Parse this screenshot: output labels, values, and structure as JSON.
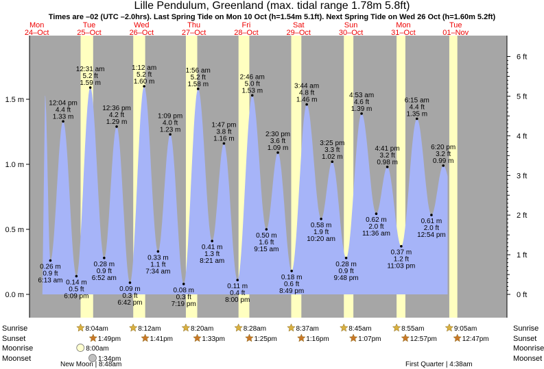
{
  "chart_data": {
    "type": "area",
    "title": "Lille Pendulum, Greenland (max. tidal range 1.78m 5.8ft)",
    "subtitle": "Times are –02 (UTC –2.0hrs). Last Spring Tide on Mon 10 Oct (h=1.54m 5.1ft). Next Spring Tide on Wed 26 Oct (h=1.60m 5.2ft)",
    "ylim_m": [
      -0.05,
      1.92
    ],
    "xlim_hours": [
      0,
      216
    ],
    "left_ticks": [
      "0.0 m",
      "0.5 m",
      "1.0 m",
      "1.5 m"
    ],
    "left_tick_values": [
      0.0,
      0.5,
      1.0,
      1.5
    ],
    "right_ticks": [
      "0 ft",
      "1 ft",
      "2 ft",
      "3 ft",
      "4 ft",
      "5 ft",
      "6 ft"
    ],
    "right_tick_values": [
      0,
      1,
      2,
      3,
      4,
      5,
      6
    ],
    "days": [
      {
        "dow": "Mon",
        "date": "24–Oct"
      },
      {
        "dow": "Tue",
        "date": "25–Oct"
      },
      {
        "dow": "Wed",
        "date": "26–Oct"
      },
      {
        "dow": "Thu",
        "date": "27–Oct"
      },
      {
        "dow": "Fri",
        "date": "28–Oct"
      },
      {
        "dow": "Sat",
        "date": "29–Oct"
      },
      {
        "dow": "Sun",
        "date": "30–Oct"
      },
      {
        "dow": "Mon",
        "date": "31–Oct"
      },
      {
        "dow": "Tue",
        "date": "01–Nov"
      }
    ],
    "tides": [
      {
        "t": 18.22,
        "h": 0.26,
        "type": "low",
        "time": "6:13 am",
        "ft": "0.9 ft",
        "m": "0.26 m"
      },
      {
        "t": 24.07,
        "h": 1.33,
        "type": "high",
        "time": "12:04 pm",
        "ft": "4.4 ft",
        "m": "1.33 m"
      },
      {
        "t": 30.15,
        "h": 0.14,
        "type": "low",
        "time": "6:09 pm",
        "ft": "0.5 ft",
        "m": "0.14 m"
      },
      {
        "t": 36.52,
        "h": 1.59,
        "type": "high",
        "time": "12:31 am",
        "ft": "5.2 ft",
        "m": "1.59 m"
      },
      {
        "t": 42.87,
        "h": 0.28,
        "type": "low",
        "time": "6:52 am",
        "ft": "0.9 ft",
        "m": "0.28 m"
      },
      {
        "t": 48.6,
        "h": 1.29,
        "type": "high",
        "time": "12:36 pm",
        "ft": "4.2 ft",
        "m": "1.29 m"
      },
      {
        "t": 54.7,
        "h": 0.09,
        "type": "low",
        "time": "6:42 pm",
        "ft": "0.3 ft",
        "m": "0.09 m"
      },
      {
        "t": 61.2,
        "h": 1.6,
        "type": "high",
        "time": "1:12 am",
        "ft": "5.2 ft",
        "m": "1.60 m"
      },
      {
        "t": 67.57,
        "h": 0.33,
        "type": "low",
        "time": "7:34 am",
        "ft": "1.1 ft",
        "m": "0.33 m"
      },
      {
        "t": 73.15,
        "h": 1.23,
        "type": "high",
        "time": "1:09 pm",
        "ft": "4.0 ft",
        "m": "1.23 m"
      },
      {
        "t": 79.32,
        "h": 0.08,
        "type": "low",
        "time": "7:19 pm",
        "ft": "0.3 ft",
        "m": "0.08 m"
      },
      {
        "t": 85.93,
        "h": 1.58,
        "type": "high",
        "time": "1:56 am",
        "ft": "5.2 ft",
        "m": "1.58 m"
      },
      {
        "t": 92.35,
        "h": 0.41,
        "type": "low",
        "time": "8:21 am",
        "ft": "1.3 ft",
        "m": "0.41 m"
      },
      {
        "t": 97.78,
        "h": 1.16,
        "type": "high",
        "time": "1:47 pm",
        "ft": "3.8 ft",
        "m": "1.16 m"
      },
      {
        "t": 104.0,
        "h": 0.11,
        "type": "low",
        "time": "8:00 pm",
        "ft": "0.4 ft",
        "m": "0.11 m"
      },
      {
        "t": 110.77,
        "h": 1.53,
        "type": "high",
        "time": "2:46 am",
        "ft": "5.0 ft",
        "m": "1.53 m"
      },
      {
        "t": 117.25,
        "h": 0.5,
        "type": "low",
        "time": "9:15 am",
        "ft": "1.6 ft",
        "m": "0.50 m"
      },
      {
        "t": 122.5,
        "h": 1.09,
        "type": "high",
        "time": "2:30 pm",
        "ft": "3.6 ft",
        "m": "1.09 m"
      },
      {
        "t": 128.82,
        "h": 0.18,
        "type": "low",
        "time": "8:49 pm",
        "ft": "0.6 ft",
        "m": "0.18 m"
      },
      {
        "t": 135.73,
        "h": 1.46,
        "type": "high",
        "time": "3:44 am",
        "ft": "4.8 ft",
        "m": "1.46 m"
      },
      {
        "t": 142.33,
        "h": 0.58,
        "type": "low",
        "time": "10:20 am",
        "ft": "1.9 ft",
        "m": "0.58 m"
      },
      {
        "t": 147.42,
        "h": 1.02,
        "type": "high",
        "time": "3:25 pm",
        "ft": "3.3 ft",
        "m": "1.02 m"
      },
      {
        "t": 153.8,
        "h": 0.28,
        "type": "low",
        "time": "9:48 pm",
        "ft": "0.9 ft",
        "m": "0.28 m"
      },
      {
        "t": 160.88,
        "h": 1.39,
        "type": "high",
        "time": "4:53 am",
        "ft": "4.6 ft",
        "m": "1.39 m"
      },
      {
        "t": 167.6,
        "h": 0.62,
        "type": "low",
        "time": "11:36 am",
        "ft": "2.0 ft",
        "m": "0.62 m"
      },
      {
        "t": 172.68,
        "h": 0.98,
        "type": "high",
        "time": "4:41 pm",
        "ft": "3.2 ft",
        "m": "0.98 m"
      },
      {
        "t": 179.05,
        "h": 0.37,
        "type": "low",
        "time": "11:03 pm",
        "ft": "1.2 ft",
        "m": "0.37 m"
      },
      {
        "t": 186.25,
        "h": 1.35,
        "type": "high",
        "time": "6:15 am",
        "ft": "4.4 ft",
        "m": "1.35 m"
      },
      {
        "t": 192.9,
        "h": 0.61,
        "type": "low",
        "time": "12:54 pm",
        "ft": "2.0 ft",
        "m": "0.61 m"
      },
      {
        "t": 198.33,
        "h": 0.99,
        "type": "high",
        "time": "6:20 pm",
        "ft": "3.2 ft",
        "m": "0.99 m"
      }
    ],
    "sun": [
      {
        "day": 1,
        "rise": 8.07,
        "set": 13.82,
        "rise_label": "8:04am",
        "set_label": "1:49pm"
      },
      {
        "day": 2,
        "rise": 8.2,
        "set": 13.68,
        "rise_label": "8:12am",
        "set_label": "1:41pm"
      },
      {
        "day": 3,
        "rise": 8.33,
        "set": 13.55,
        "rise_label": "8:20am",
        "set_label": "1:33pm"
      },
      {
        "day": 4,
        "rise": 8.47,
        "set": 13.42,
        "rise_label": "8:28am",
        "set_label": "1:25pm"
      },
      {
        "day": 5,
        "rise": 8.62,
        "set": 13.27,
        "rise_label": "8:37am",
        "set_label": "1:16pm"
      },
      {
        "day": 6,
        "rise": 8.75,
        "set": 13.12,
        "rise_label": "8:45am",
        "set_label": "1:07pm"
      },
      {
        "day": 7,
        "rise": 8.92,
        "set": 12.95,
        "rise_label": "8:55am",
        "set_label": "12:57pm"
      },
      {
        "day": 8,
        "rise": 9.08,
        "set": 12.78,
        "rise_label": "9:05am",
        "set_label": "12:47pm"
      }
    ],
    "moon": [
      {
        "day": 1,
        "kind": "rise",
        "t": 8.0,
        "label": "8:00am"
      },
      {
        "day": 1,
        "kind": "set",
        "t": 13.57,
        "label": "1:34pm"
      }
    ],
    "row_labels": [
      "Sunrise",
      "Sunset",
      "Moonrise",
      "Moonset"
    ],
    "phases": [
      {
        "label": "New Moon | 8:48am",
        "align": "left",
        "t": 0
      },
      {
        "label": "First Quarter | 4:38am",
        "align": "left",
        "t": 168
      }
    ],
    "colors": {
      "night": "#a6a6a6",
      "day": "#ffffc0",
      "water": "#a6b4f8",
      "date": "#ee0000",
      "sun": "#d8b040",
      "sunset": "#c87828",
      "moon_rise": "#ffffd0",
      "moon_set": "#c0c0c0"
    }
  }
}
